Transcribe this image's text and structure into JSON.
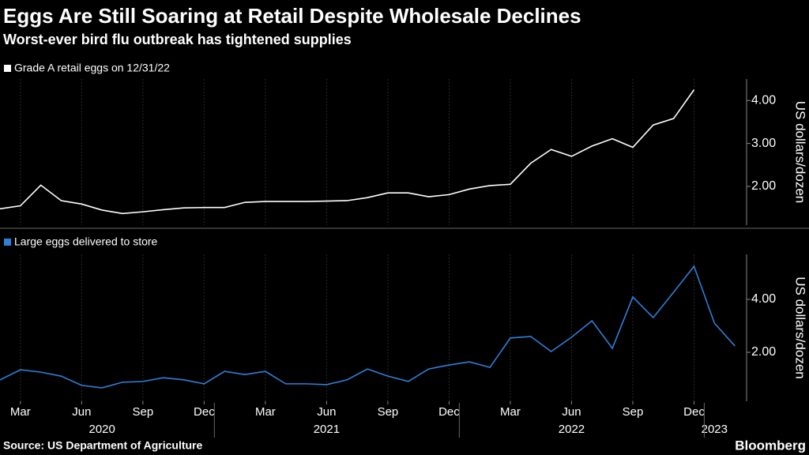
{
  "title": "Eggs Are Still Soaring at Retail Despite Wholesale Declines",
  "subtitle": "Worst-ever bird flu outbreak has tightened supplies",
  "source": "Source: US Department of Agriculture",
  "brand": "Bloomberg",
  "chart_data": [
    {
      "type": "line",
      "y_axis_label": "US dollars/dozen",
      "xlim": [
        "2020-02",
        "2023-03"
      ],
      "x": [
        "2020-02",
        "2020-03",
        "2020-04",
        "2020-05",
        "2020-06",
        "2020-07",
        "2020-08",
        "2020-09",
        "2020-10",
        "2020-11",
        "2020-12",
        "2021-01",
        "2021-02",
        "2021-03",
        "2021-04",
        "2021-05",
        "2021-06",
        "2021-07",
        "2021-08",
        "2021-09",
        "2021-10",
        "2021-11",
        "2021-12",
        "2022-01",
        "2022-02",
        "2022-03",
        "2022-04",
        "2022-05",
        "2022-06",
        "2022-07",
        "2022-08",
        "2022-09",
        "2022-10",
        "2022-11",
        "2022-12"
      ],
      "series": [
        {
          "name": "Grade A retail eggs on 12/31/22",
          "color": "#ffffff",
          "values": [
            1.48,
            1.55,
            2.03,
            1.67,
            1.59,
            1.45,
            1.37,
            1.41,
            1.46,
            1.5,
            1.51,
            1.51,
            1.63,
            1.65,
            1.65,
            1.65,
            1.66,
            1.67,
            1.74,
            1.85,
            1.85,
            1.76,
            1.81,
            1.94,
            2.02,
            2.05,
            2.54,
            2.86,
            2.7,
            2.94,
            3.11,
            2.91,
            3.43,
            3.58,
            4.25
          ]
        }
      ],
      "ylim": [
        1.1,
        4.5
      ],
      "yticks": [
        {
          "value": 2,
          "label": "2.00"
        },
        {
          "value": 3,
          "label": "3.00"
        },
        {
          "value": 4,
          "label": "4.00"
        }
      ],
      "grid": "x"
    },
    {
      "type": "line",
      "y_axis_label": "US dollars/dozen",
      "xlim": [
        "2020-02",
        "2023-03"
      ],
      "x": [
        "2020-02",
        "2020-03",
        "2020-04",
        "2020-05",
        "2020-06",
        "2020-07",
        "2020-08",
        "2020-09",
        "2020-10",
        "2020-11",
        "2020-12",
        "2021-01",
        "2021-02",
        "2021-03",
        "2021-04",
        "2021-05",
        "2021-06",
        "2021-07",
        "2021-08",
        "2021-09",
        "2021-10",
        "2021-11",
        "2021-12",
        "2022-01",
        "2022-02",
        "2022-03",
        "2022-04",
        "2022-05",
        "2022-06",
        "2022-07",
        "2022-08",
        "2022-09",
        "2022-10",
        "2022-11",
        "2022-12",
        "2023-01",
        "2023-02"
      ],
      "series": [
        {
          "name": "Large eggs delivered to store",
          "color": "#2e7fd9",
          "values": [
            0.96,
            1.34,
            1.25,
            1.1,
            0.75,
            0.66,
            0.87,
            0.9,
            1.04,
            0.96,
            0.81,
            1.28,
            1.16,
            1.28,
            0.81,
            0.81,
            0.78,
            0.96,
            1.37,
            1.1,
            0.9,
            1.37,
            1.52,
            1.64,
            1.43,
            2.54,
            2.6,
            2.03,
            2.57,
            3.19,
            2.15,
            4.09,
            3.31,
            4.27,
            5.25,
            3.1,
            2.24
          ]
        }
      ],
      "ylim": [
        0.15,
        5.7
      ],
      "yticks": [
        {
          "value": 2,
          "label": "2.00"
        },
        {
          "value": 4,
          "label": "4.00"
        }
      ],
      "grid": "x",
      "xticks": [
        {
          "value": "2020-03",
          "label": "Mar"
        },
        {
          "value": "2020-06",
          "label": "Jun"
        },
        {
          "value": "2020-09",
          "label": "Sep"
        },
        {
          "value": "2020-12",
          "label": "Dec"
        },
        {
          "value": "2021-03",
          "label": "Mar"
        },
        {
          "value": "2021-06",
          "label": "Jun"
        },
        {
          "value": "2021-09",
          "label": "Sep"
        },
        {
          "value": "2021-12",
          "label": "Dec"
        },
        {
          "value": "2022-03",
          "label": "Mar"
        },
        {
          "value": "2022-06",
          "label": "Jun"
        },
        {
          "value": "2022-09",
          "label": "Sep"
        },
        {
          "value": "2022-12",
          "label": "Dec"
        }
      ],
      "year_ticks": [
        {
          "value": "2020-07",
          "label": "2020"
        },
        {
          "value": "2021-06",
          "label": "2021"
        },
        {
          "value": "2022-06",
          "label": "2022"
        },
        {
          "value": "2023-01",
          "label": "2023"
        }
      ]
    }
  ]
}
